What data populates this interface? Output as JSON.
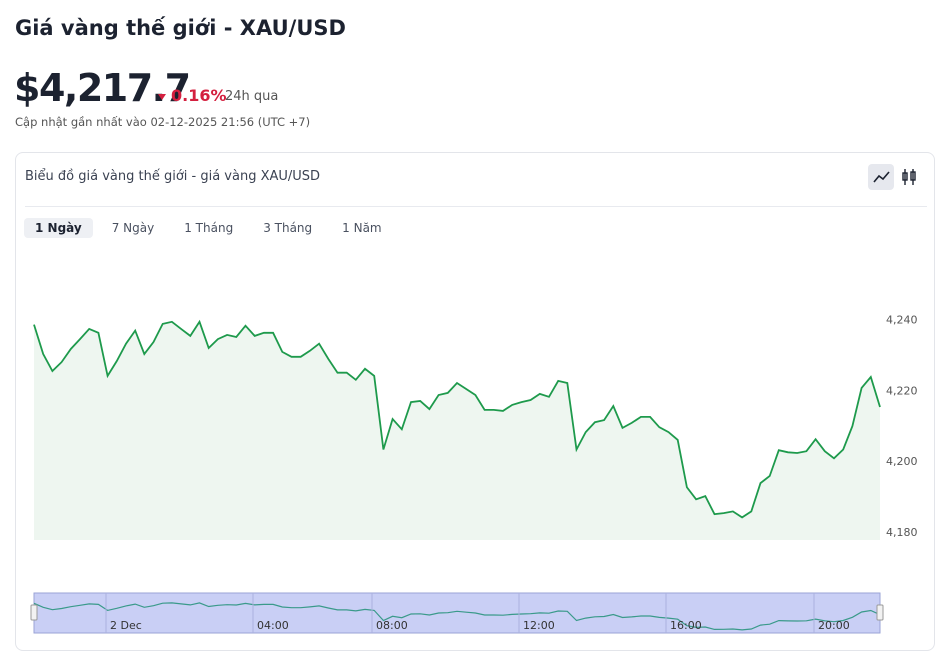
{
  "header": {
    "title": "Giá vàng thế giới - XAU/USD",
    "price": "$4,217.7",
    "change": "0.16%",
    "period": "24h qua",
    "updated": "Cập nhật gần nhất vào 02-12-2025 21:56 (UTC +7)"
  },
  "card": {
    "title": "Biểu đồ giá vàng thế giới - giá vàng XAU/USD",
    "tabs": [
      "1 Ngày",
      "7 Ngày",
      "1 Tháng",
      "3 Tháng",
      "1 Năm"
    ]
  },
  "navigator": {
    "labels": [
      "2 Dec",
      "04:00",
      "08:00",
      "12:00",
      "16:00",
      "20:00"
    ]
  },
  "chart_data": {
    "type": "line",
    "series": [
      {
        "name": "XAU/USD",
        "color": "#1e9a4c",
        "values": [
          4238.9,
          4230.6,
          4225.8,
          4228.3,
          4232,
          4234.8,
          4237.7,
          4236.6,
          4224.4,
          4228.6,
          4233.5,
          4237.2,
          4230.6,
          4234,
          4239.1,
          4239.7,
          4237.7,
          4235.7,
          4239.7,
          4232.3,
          4234.8,
          4236,
          4235.4,
          4238.6,
          4235.7,
          4236.6,
          4236.6,
          4231.2,
          4229.8,
          4229.8,
          4231.5,
          4233.5,
          4229.2,
          4225.3,
          4225.3,
          4223.3,
          4226.4,
          4224.4,
          4203.6,
          4212.2,
          4209.3,
          4217,
          4217.3,
          4215,
          4219,
          4219.6,
          4222.4,
          4220.7,
          4219,
          4214.8,
          4214.8,
          4214.5,
          4216.2,
          4217,
          4217.6,
          4219.3,
          4218.5,
          4223,
          4222.4,
          4203.6,
          4208.5,
          4211.3,
          4211.9,
          4215.9,
          4209.7,
          4211.1,
          4212.8,
          4212.8,
          4209.9,
          4208.5,
          4206.3,
          4192.9,
          4189.5,
          4190.4,
          4185.3,
          4185.6,
          4186.1,
          4184.4,
          4186.1,
          4194.1,
          4196.1,
          4203.4,
          4202.8,
          4202.6,
          4203.1,
          4206.5,
          4203.1,
          4201.1,
          4203.6,
          4210.2,
          4221,
          4224.1,
          4215.6
        ]
      }
    ],
    "ylim": [
      4178,
      4260
    ],
    "yticks": [
      {
        "value": 4180,
        "label": "4,180"
      },
      {
        "value": 4200,
        "label": "4,200"
      },
      {
        "value": 4220,
        "label": "4,220"
      },
      {
        "value": 4240,
        "label": "4,240"
      }
    ]
  }
}
